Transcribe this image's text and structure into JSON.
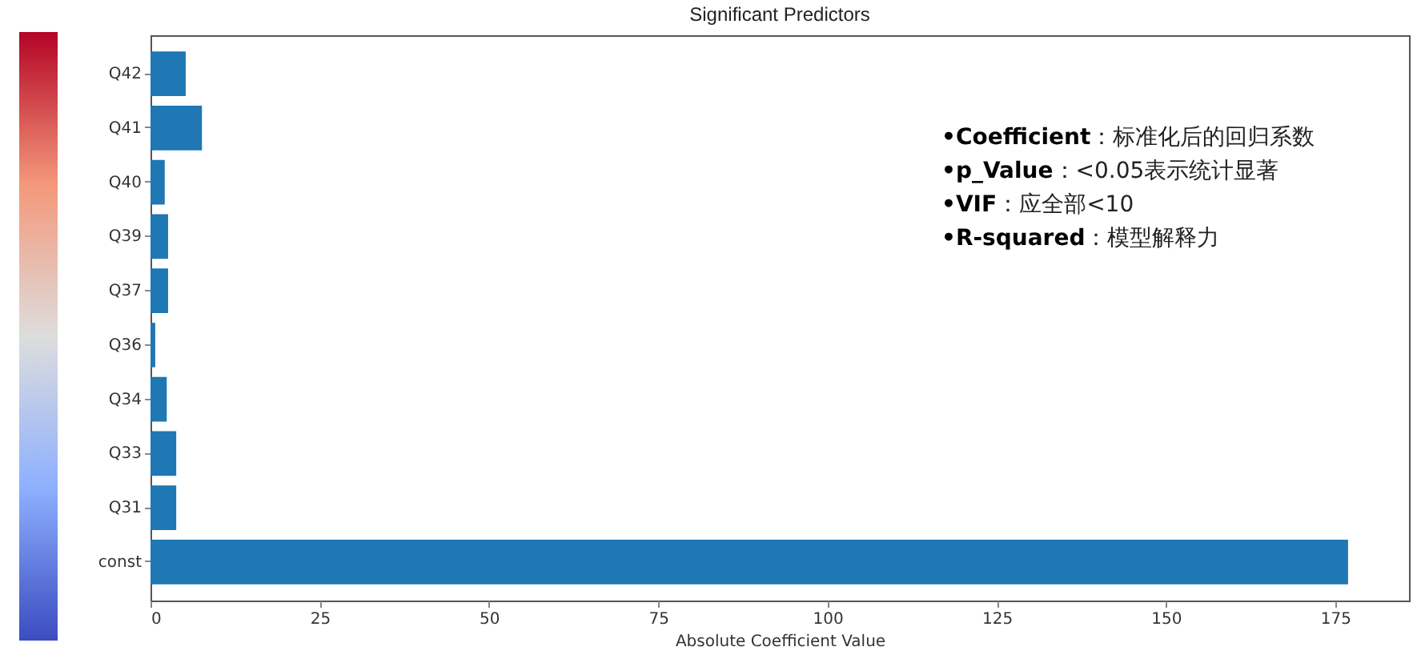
{
  "chart_data": {
    "type": "bar",
    "orientation": "horizontal",
    "title": "Significant Predictors",
    "xlabel": "Absolute Coefficient Value",
    "categories": [
      "Q42",
      "Q41",
      "Q40",
      "Q39",
      "Q37",
      "Q36",
      "Q34",
      "Q33",
      "Q31",
      "const"
    ],
    "values": [
      5.2,
      7.6,
      2.1,
      2.6,
      2.6,
      0.7,
      2.4,
      3.8,
      3.8,
      176.9
    ],
    "color": "#1f77b4",
    "xlim": [
      0,
      185.9
    ],
    "xticks": [
      0,
      25,
      50,
      75,
      100,
      125,
      150,
      175
    ],
    "grid": false,
    "annotations": [
      "•Coefficient：标准化后的回归系数",
      "•p_Value：<0.05表示统计显著",
      "•VIF：应全部<10",
      "•R-squared：模型解释力"
    ]
  }
}
